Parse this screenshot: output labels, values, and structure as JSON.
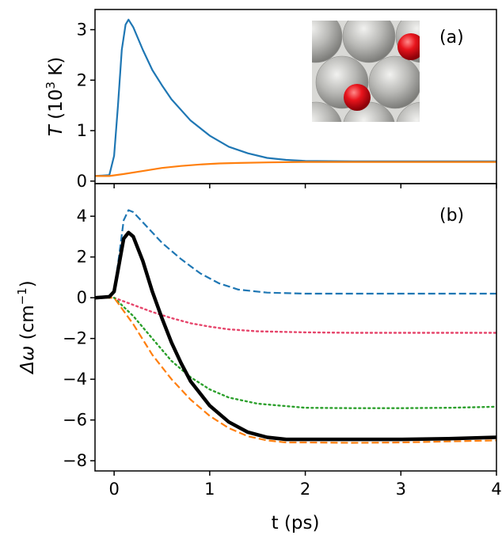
{
  "chart_data": [
    {
      "type": "line",
      "panel_label": "(a)",
      "ylabel_parts": [
        "T",
        " (10",
        "3",
        " K)"
      ],
      "xlim": [
        -0.2,
        4
      ],
      "ylim": [
        -0.05,
        3.4
      ],
      "yticks": [
        0,
        1,
        2,
        3
      ],
      "grid": false,
      "inset": {
        "description_icon": "atomic-structure-inset",
        "surface_color": "#b8b8b5",
        "adsorbate_color": "#e8141c"
      },
      "series": [
        {
          "color": "#1f77b4",
          "style": "solid",
          "x": [
            -0.2,
            -0.05,
            0.0,
            0.04,
            0.08,
            0.12,
            0.15,
            0.2,
            0.3,
            0.4,
            0.5,
            0.6,
            0.8,
            1.0,
            1.2,
            1.4,
            1.6,
            1.8,
            2.0,
            2.5,
            3.0,
            3.5,
            4.0
          ],
          "y": [
            0.1,
            0.12,
            0.5,
            1.5,
            2.6,
            3.1,
            3.2,
            3.05,
            2.6,
            2.2,
            1.9,
            1.62,
            1.2,
            0.9,
            0.68,
            0.55,
            0.46,
            0.42,
            0.4,
            0.39,
            0.39,
            0.39,
            0.39
          ]
        },
        {
          "color": "#ff7f0e",
          "style": "solid",
          "x": [
            -0.2,
            -0.05,
            0.1,
            0.3,
            0.5,
            0.7,
            0.9,
            1.1,
            1.3,
            1.6,
            2.0,
            2.5,
            3.0,
            3.5,
            4.0
          ],
          "y": [
            0.1,
            0.1,
            0.14,
            0.2,
            0.26,
            0.3,
            0.33,
            0.35,
            0.36,
            0.37,
            0.38,
            0.38,
            0.38,
            0.38,
            0.38
          ]
        }
      ]
    },
    {
      "type": "line",
      "panel_label": "(b)",
      "ylabel_parts": [
        "Δω",
        " (cm",
        "−1",
        ")"
      ],
      "xlabel": "t (ps)",
      "xlim": [
        -0.2,
        4
      ],
      "ylim": [
        -8.5,
        5.6
      ],
      "xticks": [
        0,
        1,
        2,
        3,
        4
      ],
      "yticks": [
        4,
        2,
        0,
        -2,
        -4,
        -6,
        -8
      ],
      "grid": false,
      "series": [
        {
          "color": "#1f77b4",
          "style": "dashed",
          "x": [
            -0.2,
            -0.05,
            0.0,
            0.05,
            0.1,
            0.15,
            0.2,
            0.3,
            0.5,
            0.7,
            0.9,
            1.1,
            1.3,
            1.6,
            2.0,
            2.5,
            3.0,
            3.5,
            4.0
          ],
          "y": [
            0.0,
            0.05,
            0.3,
            2.0,
            3.8,
            4.3,
            4.2,
            3.7,
            2.7,
            1.9,
            1.2,
            0.7,
            0.4,
            0.25,
            0.2,
            0.2,
            0.2,
            0.2,
            0.2
          ]
        },
        {
          "color": "#e6456b",
          "style": "dotted",
          "x": [
            -0.2,
            0.0,
            0.2,
            0.4,
            0.6,
            0.8,
            1.0,
            1.2,
            1.5,
            2.0,
            2.5,
            3.0,
            3.5,
            4.0
          ],
          "y": [
            0.0,
            0.0,
            -0.35,
            -0.7,
            -1.0,
            -1.25,
            -1.42,
            -1.55,
            -1.65,
            -1.7,
            -1.72,
            -1.72,
            -1.72,
            -1.72
          ]
        },
        {
          "color": "#2ca02c",
          "style": "dotted",
          "x": [
            -0.2,
            0.0,
            0.2,
            0.4,
            0.6,
            0.8,
            1.0,
            1.2,
            1.5,
            2.0,
            2.5,
            3.0,
            3.5,
            4.0
          ],
          "y": [
            0.0,
            0.0,
            -0.9,
            -2.0,
            -3.1,
            -3.9,
            -4.5,
            -4.9,
            -5.2,
            -5.4,
            -5.42,
            -5.42,
            -5.4,
            -5.35
          ]
        },
        {
          "color": "#ff7f0e",
          "style": "dashed",
          "x": [
            -0.2,
            0.0,
            0.2,
            0.4,
            0.6,
            0.8,
            1.0,
            1.2,
            1.4,
            1.6,
            1.8,
            2.0,
            2.5,
            3.0,
            3.5,
            4.0
          ],
          "y": [
            0.0,
            0.0,
            -1.3,
            -2.8,
            -4.0,
            -5.0,
            -5.8,
            -6.4,
            -6.8,
            -7.0,
            -7.1,
            -7.1,
            -7.12,
            -7.1,
            -7.05,
            -7.0
          ]
        },
        {
          "color": "#000000",
          "style": "solid-thick",
          "x": [
            -0.2,
            -0.05,
            0.0,
            0.05,
            0.1,
            0.15,
            0.2,
            0.3,
            0.4,
            0.5,
            0.6,
            0.7,
            0.8,
            1.0,
            1.2,
            1.4,
            1.6,
            1.8,
            2.0,
            2.5,
            3.0,
            3.5,
            4.0
          ],
          "y": [
            0.0,
            0.05,
            0.3,
            1.6,
            2.9,
            3.2,
            3.0,
            1.8,
            0.3,
            -1.0,
            -2.2,
            -3.2,
            -4.1,
            -5.3,
            -6.1,
            -6.6,
            -6.85,
            -6.95,
            -6.95,
            -6.95,
            -6.95,
            -6.92,
            -6.85
          ]
        }
      ]
    }
  ]
}
